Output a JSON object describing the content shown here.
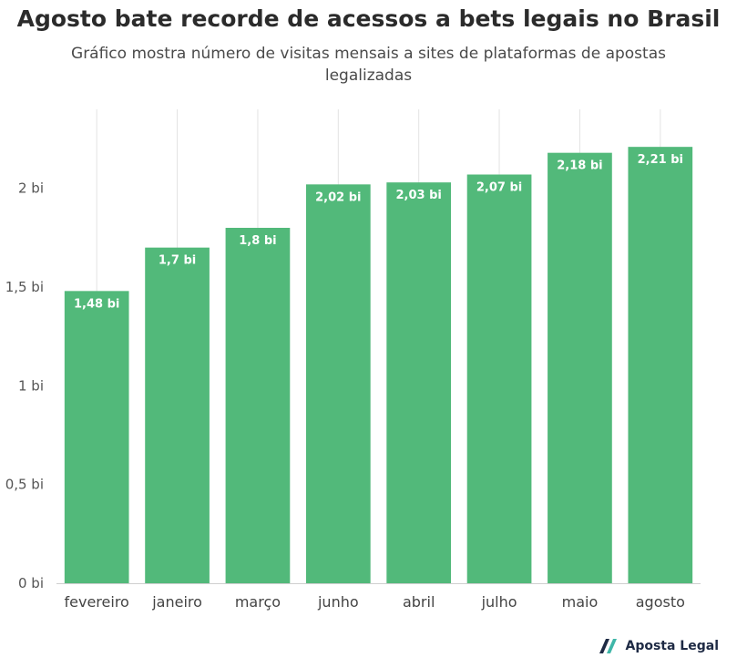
{
  "chart_data": {
    "type": "bar",
    "title": "Agosto bate recorde de acessos a bets legais no Brasil",
    "subtitle": "Gráfico mostra número de visitas mensais a sites de plataformas de apostas legalizadas",
    "categories": [
      "fevereiro",
      "janeiro",
      "março",
      "junho",
      "abril",
      "julho",
      "maio",
      "agosto"
    ],
    "values": [
      1.48,
      1.7,
      1.8,
      2.02,
      2.03,
      2.07,
      2.18,
      2.21
    ],
    "data_labels": [
      "1,48 bi",
      "1,7 bi",
      "1,8 bi",
      "2,02 bi",
      "2,03 bi",
      "2,07 bi",
      "2,18 bi",
      "2,21 bi"
    ],
    "y_ticks": [
      0,
      0.5,
      1,
      1.5,
      2
    ],
    "y_tick_labels": [
      "0 bi",
      "0,5 bi",
      "1 bi",
      "1,5 bi",
      "2 bi"
    ],
    "ylim": [
      0,
      2.4
    ],
    "xlabel": "",
    "ylabel": "",
    "grid": "vertical",
    "bar_color": "#52b97a"
  },
  "brand": {
    "name": "Aposta Legal",
    "logo_icon": "aposta-legal-logo-icon",
    "logo_colors": [
      "#1e2a44",
      "#3fb6a8"
    ]
  }
}
